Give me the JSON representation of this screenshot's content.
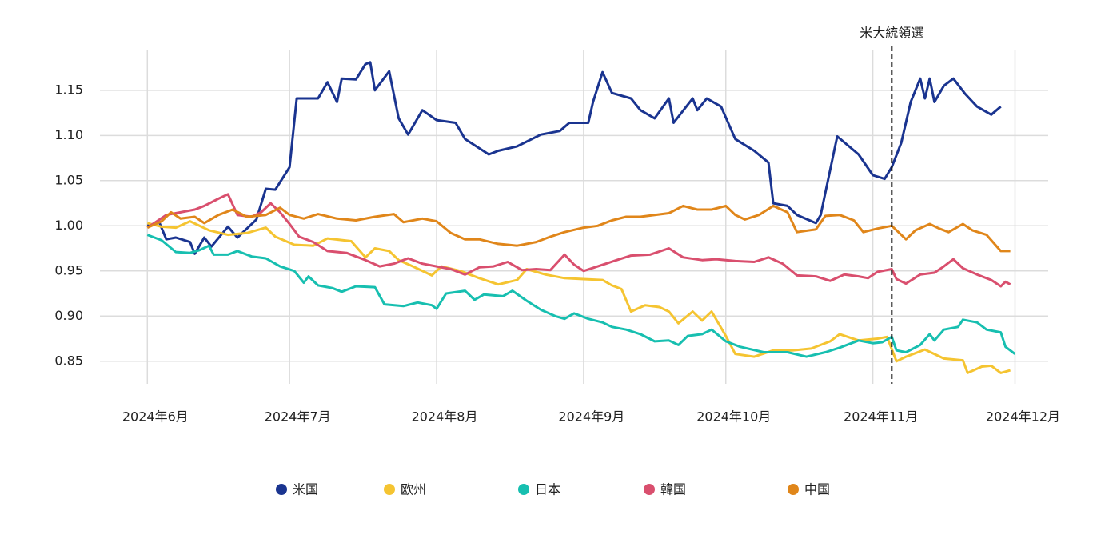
{
  "chart_data": {
    "type": "line",
    "xlim": [
      -10,
      190
    ],
    "ylim": [
      0.825,
      1.195
    ],
    "xticks": [
      {
        "value": 0,
        "label": "2024年6月"
      },
      {
        "value": 30,
        "label": "2024年7月"
      },
      {
        "value": 61,
        "label": "2024年8月"
      },
      {
        "value": 92,
        "label": "2024年9月"
      },
      {
        "value": 122,
        "label": "2024年10月"
      },
      {
        "value": 153,
        "label": "2024年11月"
      },
      {
        "value": 183,
        "label": "2024年12月"
      }
    ],
    "yticks": [
      1.15,
      {
        "value": 1.1,
        "label": "1.10"
      },
      1.05,
      {
        "value": 1,
        "label": "1.00"
      },
      0.95,
      {
        "value": 0.9,
        "label": "0.90"
      },
      0.85
    ],
    "grid": true,
    "annotation": {
      "text": "米大統領選",
      "x": 157
    },
    "series": [
      {
        "name": "米国",
        "color": "#1a3490",
        "x": [
          0,
          2.5,
          4,
          6,
          9,
          10,
          12,
          13.5,
          17,
          19,
          23,
          25,
          27,
          30,
          31.5,
          34,
          36,
          38,
          40,
          41,
          44,
          46,
          47,
          48,
          51,
          53,
          55,
          58,
          61,
          65,
          67,
          72,
          74,
          78,
          83,
          87,
          89,
          93,
          94,
          96,
          98,
          102,
          104,
          107,
          110,
          111,
          115,
          116,
          118,
          121,
          124,
          128,
          131,
          132,
          135,
          137,
          141,
          142,
          145,
          145.5,
          150,
          153,
          155.5,
          157,
          159,
          161,
          163,
          164,
          165,
          166,
          168,
          170,
          172.5,
          175,
          178,
          180
        ],
        "values": [
          1.0,
          1.004,
          0.985,
          0.987,
          0.982,
          0.969,
          0.987,
          0.977,
          0.999,
          0.987,
          1.007,
          1.041,
          1.04,
          1.065,
          1.141,
          1.141,
          1.141,
          1.159,
          1.137,
          1.163,
          1.162,
          1.179,
          1.181,
          1.15,
          1.171,
          1.119,
          1.101,
          1.128,
          1.117,
          1.114,
          1.096,
          1.079,
          1.083,
          1.088,
          1.101,
          1.105,
          1.114,
          1.114,
          1.137,
          1.17,
          1.147,
          1.141,
          1.128,
          1.119,
          1.141,
          1.114,
          1.141,
          1.128,
          1.141,
          1.132,
          1.096,
          1.083,
          1.07,
          1.025,
          1.022,
          1.012,
          1.003,
          1.012,
          1.087,
          1.099,
          1.079,
          1.056,
          1.052,
          1.065,
          1.092,
          1.137,
          1.163,
          1.141,
          1.163,
          1.137,
          1.155,
          1.163,
          1.146,
          1.132,
          1.123,
          1.132
        ]
      },
      {
        "name": "欧州",
        "color": "#f5c431",
        "x": [
          0,
          3,
          6,
          9,
          13,
          17,
          21,
          25,
          27,
          31,
          35,
          38,
          43,
          46,
          48,
          51,
          53,
          56,
          60,
          62,
          66,
          70,
          74,
          78,
          80,
          84,
          88,
          92,
          96,
          98,
          100,
          102,
          105,
          108,
          110,
          112,
          115,
          117,
          119,
          122,
          124,
          128,
          132,
          136,
          140,
          144,
          146,
          150,
          154,
          156,
          158,
          160,
          164,
          168,
          172,
          173,
          176,
          178,
          180,
          182
        ],
        "values": [
          1.003,
          0.999,
          0.998,
          1.005,
          0.995,
          0.99,
          0.992,
          0.998,
          0.988,
          0.979,
          0.978,
          0.986,
          0.983,
          0.965,
          0.975,
          0.972,
          0.962,
          0.955,
          0.945,
          0.955,
          0.95,
          0.942,
          0.935,
          0.94,
          0.952,
          0.946,
          0.942,
          0.941,
          0.94,
          0.934,
          0.93,
          0.905,
          0.912,
          0.91,
          0.905,
          0.892,
          0.905,
          0.895,
          0.905,
          0.878,
          0.858,
          0.855,
          0.862,
          0.862,
          0.864,
          0.872,
          0.88,
          0.873,
          0.875,
          0.877,
          0.85,
          0.855,
          0.863,
          0.853,
          0.851,
          0.837,
          0.844,
          0.845,
          0.837,
          0.84
        ]
      },
      {
        "name": "日本",
        "color": "#17bfb0",
        "x": [
          0,
          3,
          6,
          9,
          11,
          13,
          14,
          17,
          19,
          22,
          25,
          28,
          31,
          33,
          34,
          36,
          39,
          41,
          44,
          48,
          50,
          54,
          57,
          60,
          61,
          63,
          67,
          69,
          71,
          75,
          77,
          80,
          83,
          86,
          88,
          90,
          93,
          96,
          98,
          101,
          104,
          107,
          110,
          112,
          114,
          117,
          119,
          122,
          125,
          130,
          135,
          139,
          143,
          146,
          150,
          153,
          155,
          157,
          158,
          160,
          163,
          165,
          166,
          168,
          171,
          172,
          175,
          177,
          180,
          181,
          183
        ],
        "values": [
          0.99,
          0.984,
          0.971,
          0.97,
          0.973,
          0.978,
          0.968,
          0.968,
          0.972,
          0.966,
          0.964,
          0.955,
          0.95,
          0.937,
          0.944,
          0.934,
          0.931,
          0.927,
          0.933,
          0.932,
          0.913,
          0.911,
          0.915,
          0.912,
          0.908,
          0.925,
          0.928,
          0.918,
          0.924,
          0.922,
          0.928,
          0.917,
          0.907,
          0.9,
          0.897,
          0.903,
          0.897,
          0.893,
          0.888,
          0.885,
          0.88,
          0.872,
          0.873,
          0.868,
          0.878,
          0.88,
          0.885,
          0.872,
          0.866,
          0.86,
          0.86,
          0.855,
          0.86,
          0.865,
          0.873,
          0.87,
          0.871,
          0.877,
          0.862,
          0.86,
          0.868,
          0.88,
          0.873,
          0.885,
          0.888,
          0.896,
          0.893,
          0.885,
          0.882,
          0.866,
          0.858
        ]
      },
      {
        "name": "韓国",
        "color": "#d94f6e",
        "x": [
          0,
          4,
          7,
          10,
          12,
          15,
          17,
          19,
          22,
          24,
          26,
          28,
          30,
          32,
          35,
          38,
          42,
          46,
          49,
          52,
          55,
          58,
          61,
          64,
          67,
          70,
          73,
          76,
          79,
          82,
          85,
          88,
          90,
          92,
          95,
          99,
          102,
          106,
          110,
          113,
          117,
          120,
          124,
          128,
          131,
          134,
          137,
          141,
          144,
          147,
          150,
          152,
          154,
          157,
          158,
          160,
          163,
          166,
          168,
          170,
          172,
          175,
          178,
          180,
          181,
          182
        ],
        "values": [
          0.998,
          1.012,
          1.015,
          1.018,
          1.022,
          1.03,
          1.035,
          1.012,
          1.01,
          1.015,
          1.025,
          1.015,
          1.002,
          0.988,
          0.982,
          0.972,
          0.97,
          0.962,
          0.955,
          0.958,
          0.964,
          0.958,
          0.955,
          0.952,
          0.946,
          0.954,
          0.955,
          0.96,
          0.951,
          0.952,
          0.951,
          0.968,
          0.957,
          0.95,
          0.955,
          0.962,
          0.967,
          0.968,
          0.975,
          0.965,
          0.962,
          0.963,
          0.961,
          0.96,
          0.965,
          0.958,
          0.945,
          0.944,
          0.939,
          0.946,
          0.944,
          0.942,
          0.949,
          0.952,
          0.941,
          0.936,
          0.946,
          0.948,
          0.955,
          0.963,
          0.953,
          0.946,
          0.94,
          0.933,
          0.938,
          0.935
        ]
      },
      {
        "name": "中国",
        "color": "#e0861a",
        "x": [
          0,
          3,
          5,
          7,
          10,
          12,
          15,
          18,
          21,
          25,
          28,
          30,
          33,
          36,
          40,
          44,
          48,
          52,
          54,
          58,
          61,
          64,
          67,
          70,
          74,
          78,
          82,
          85,
          88,
          92,
          95,
          98,
          101,
          104,
          107,
          110,
          113,
          116,
          119,
          122,
          124,
          126,
          129,
          132,
          135,
          137,
          141,
          143,
          146,
          149,
          151,
          154,
          157,
          160,
          162,
          165,
          167,
          169,
          172,
          174,
          177,
          180,
          182
        ],
        "values": [
          0.998,
          1.005,
          1.015,
          1.008,
          1.01,
          1.003,
          1.012,
          1.018,
          1.01,
          1.012,
          1.02,
          1.012,
          1.008,
          1.013,
          1.008,
          1.006,
          1.01,
          1.013,
          1.004,
          1.008,
          1.005,
          0.992,
          0.985,
          0.985,
          0.98,
          0.978,
          0.982,
          0.988,
          0.993,
          0.998,
          1.0,
          1.006,
          1.01,
          1.01,
          1.012,
          1.014,
          1.022,
          1.018,
          1.018,
          1.022,
          1.012,
          1.007,
          1.012,
          1.022,
          1.015,
          0.993,
          0.996,
          1.011,
          1.012,
          1.006,
          0.993,
          0.997,
          1.0,
          0.985,
          0.995,
          1.002,
          0.997,
          0.993,
          1.002,
          0.995,
          0.99,
          0.972,
          0.972
        ]
      }
    ]
  }
}
